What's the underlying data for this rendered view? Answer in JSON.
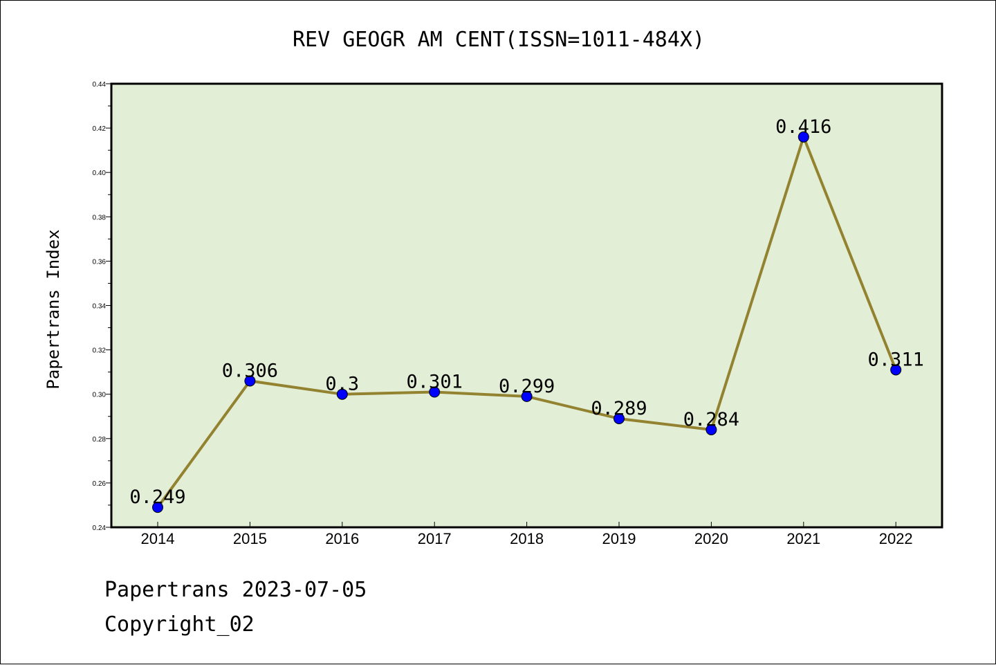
{
  "chart_data": {
    "type": "line",
    "title": "REV GEOGR AM CENT(ISSN=1011-484X)",
    "xlabel": "",
    "ylabel": "Papertrans Index",
    "categories": [
      "2014",
      "2015",
      "2016",
      "2017",
      "2018",
      "2019",
      "2020",
      "2021",
      "2022"
    ],
    "values": [
      0.249,
      0.306,
      0.3,
      0.301,
      0.299,
      0.289,
      0.284,
      0.416,
      0.311
    ],
    "data_labels": [
      "0.249",
      "0.306",
      "0.3",
      "0.301",
      "0.299",
      "0.289",
      "0.284",
      "0.416",
      "0.311"
    ],
    "ylim": [
      0.24,
      0.44
    ],
    "yticks": [
      "0.24",
      "0.26",
      "0.28",
      "0.30",
      "0.32",
      "0.34",
      "0.36",
      "0.38",
      "0.40",
      "0.42",
      "0.44"
    ],
    "grid": false,
    "colors": {
      "plot_background": "#e2efd6",
      "line": "#938230",
      "marker": "#0000ff"
    }
  },
  "footer": {
    "line1": "Papertrans 2023-07-05",
    "line2": "Copyright_02"
  }
}
